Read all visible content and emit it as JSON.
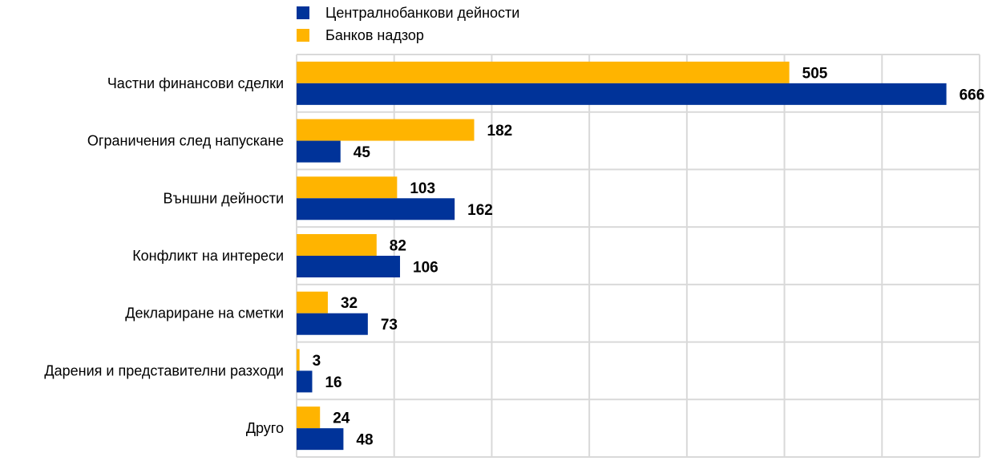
{
  "chart_data": {
    "type": "bar",
    "orientation": "horizontal",
    "categories": [
      "Частни финансови сделки",
      "Ограничения след напускане",
      "Външни дейности",
      "Конфликт на интереси",
      "Деклариране на сметки",
      "Дарения и представителни разходи",
      "Друго"
    ],
    "series": [
      {
        "name": "Централнобанкови дейности",
        "color": "#003399",
        "values": [
          666,
          45,
          162,
          106,
          73,
          16,
          48
        ]
      },
      {
        "name": "Банков надзор",
        "color": "#ffb400",
        "values": [
          505,
          182,
          103,
          82,
          32,
          3,
          24
        ]
      }
    ],
    "xlim": [
      0,
      700
    ],
    "grid": true,
    "legend_position": "top",
    "data_labels": true
  }
}
